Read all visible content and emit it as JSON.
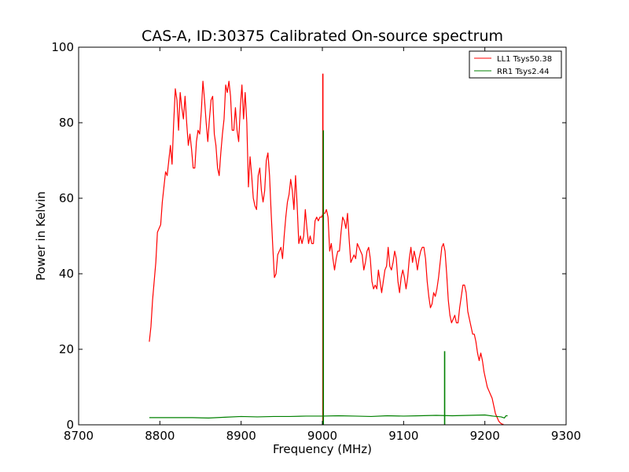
{
  "chart_data": {
    "type": "line",
    "title": "CAS-A, ID:30375 Calibrated On-source spectrum",
    "xlabel": "Frequency (MHz)",
    "ylabel": "Power in Kelvin",
    "xlim": [
      8700,
      9300
    ],
    "ylim": [
      0,
      100
    ],
    "xticks": [
      8700,
      8800,
      8900,
      9000,
      9100,
      9200,
      9300
    ],
    "yticks": [
      0,
      20,
      40,
      60,
      80,
      100
    ],
    "grid": false,
    "legend_position": "top-right",
    "series": [
      {
        "name": "LL1 Tsys50.38",
        "color": "#ff0000",
        "points": [
          [
            8787,
            22
          ],
          [
            8789,
            26
          ],
          [
            8791,
            33
          ],
          [
            8793,
            38
          ],
          [
            8795,
            43
          ],
          [
            8797,
            51
          ],
          [
            8799,
            52
          ],
          [
            8801,
            53
          ],
          [
            8803,
            59
          ],
          [
            8805,
            63
          ],
          [
            8807,
            67
          ],
          [
            8809,
            66
          ],
          [
            8811,
            70
          ],
          [
            8813,
            74
          ],
          [
            8815,
            69
          ],
          [
            8817,
            80
          ],
          [
            8819,
            89
          ],
          [
            8821,
            86
          ],
          [
            8823,
            78
          ],
          [
            8825,
            88
          ],
          [
            8827,
            84
          ],
          [
            8829,
            81
          ],
          [
            8831,
            87
          ],
          [
            8833,
            80
          ],
          [
            8835,
            74
          ],
          [
            8837,
            77
          ],
          [
            8839,
            73
          ],
          [
            8841,
            68
          ],
          [
            8843,
            68
          ],
          [
            8845,
            75
          ],
          [
            8847,
            78
          ],
          [
            8849,
            77
          ],
          [
            8851,
            83
          ],
          [
            8853,
            91
          ],
          [
            8855,
            86
          ],
          [
            8857,
            80
          ],
          [
            8859,
            75
          ],
          [
            8861,
            81
          ],
          [
            8863,
            86
          ],
          [
            8865,
            87
          ],
          [
            8867,
            77
          ],
          [
            8869,
            74
          ],
          [
            8871,
            68
          ],
          [
            8873,
            66
          ],
          [
            8875,
            72
          ],
          [
            8877,
            77
          ],
          [
            8879,
            81
          ],
          [
            8881,
            90
          ],
          [
            8883,
            88
          ],
          [
            8885,
            91
          ],
          [
            8887,
            87
          ],
          [
            8889,
            78
          ],
          [
            8891,
            78
          ],
          [
            8893,
            84
          ],
          [
            8895,
            78
          ],
          [
            8897,
            75
          ],
          [
            8899,
            84
          ],
          [
            8901,
            90
          ],
          [
            8903,
            81
          ],
          [
            8905,
            88
          ],
          [
            8907,
            80
          ],
          [
            8909,
            63
          ],
          [
            8911,
            71
          ],
          [
            8913,
            66
          ],
          [
            8915,
            60
          ],
          [
            8917,
            58
          ],
          [
            8919,
            57
          ],
          [
            8921,
            66
          ],
          [
            8923,
            68
          ],
          [
            8925,
            62
          ],
          [
            8927,
            59
          ],
          [
            8929,
            62
          ],
          [
            8931,
            70
          ],
          [
            8933,
            72
          ],
          [
            8935,
            66
          ],
          [
            8937,
            56
          ],
          [
            8939,
            47
          ],
          [
            8941,
            39
          ],
          [
            8943,
            40
          ],
          [
            8945,
            45
          ],
          [
            8947,
            46
          ],
          [
            8949,
            47
          ],
          [
            8951,
            44
          ],
          [
            8953,
            50
          ],
          [
            8955,
            55
          ],
          [
            8957,
            59
          ],
          [
            8959,
            61
          ],
          [
            8961,
            65
          ],
          [
            8963,
            62
          ],
          [
            8965,
            57
          ],
          [
            8967,
            66
          ],
          [
            8969,
            58
          ],
          [
            8971,
            48
          ],
          [
            8973,
            50
          ],
          [
            8975,
            48
          ],
          [
            8977,
            50
          ],
          [
            8979,
            57
          ],
          [
            8981,
            52
          ],
          [
            8983,
            48
          ],
          [
            8985,
            50
          ],
          [
            8987,
            48
          ],
          [
            8989,
            48
          ],
          [
            8991,
            54
          ],
          [
            8993,
            55
          ],
          [
            8995,
            54
          ],
          [
            8997,
            55
          ],
          [
            8999,
            55
          ],
          [
            9001,
            56
          ],
          [
            9003,
            56
          ],
          [
            9005,
            57
          ],
          [
            9007,
            55
          ],
          [
            9009,
            46
          ],
          [
            9011,
            48
          ],
          [
            9013,
            44
          ],
          [
            9015,
            41
          ],
          [
            9017,
            44
          ],
          [
            9019,
            46
          ],
          [
            9021,
            46
          ],
          [
            9023,
            51
          ],
          [
            9025,
            55
          ],
          [
            9027,
            54
          ],
          [
            9029,
            52
          ],
          [
            9031,
            56
          ],
          [
            9033,
            49
          ],
          [
            9035,
            43
          ],
          [
            9037,
            44
          ],
          [
            9039,
            45
          ],
          [
            9041,
            44
          ],
          [
            9043,
            48
          ],
          [
            9045,
            47
          ],
          [
            9047,
            46
          ],
          [
            9049,
            45
          ],
          [
            9051,
            41
          ],
          [
            9053,
            43
          ],
          [
            9055,
            46
          ],
          [
            9057,
            47
          ],
          [
            9059,
            44
          ],
          [
            9061,
            38
          ],
          [
            9063,
            36
          ],
          [
            9065,
            37
          ],
          [
            9067,
            36
          ],
          [
            9069,
            41
          ],
          [
            9071,
            38
          ],
          [
            9073,
            35
          ],
          [
            9075,
            38
          ],
          [
            9077,
            41
          ],
          [
            9079,
            42
          ],
          [
            9081,
            47
          ],
          [
            9083,
            42
          ],
          [
            9085,
            41
          ],
          [
            9087,
            43
          ],
          [
            9089,
            46
          ],
          [
            9091,
            44
          ],
          [
            9093,
            38
          ],
          [
            9095,
            35
          ],
          [
            9097,
            39
          ],
          [
            9099,
            41
          ],
          [
            9101,
            39
          ],
          [
            9103,
            36
          ],
          [
            9105,
            39
          ],
          [
            9107,
            44
          ],
          [
            9109,
            47
          ],
          [
            9111,
            43
          ],
          [
            9113,
            46
          ],
          [
            9115,
            44
          ],
          [
            9117,
            41
          ],
          [
            9119,
            44
          ],
          [
            9121,
            46
          ],
          [
            9123,
            47
          ],
          [
            9125,
            47
          ],
          [
            9127,
            44
          ],
          [
            9129,
            38
          ],
          [
            9131,
            34
          ],
          [
            9133,
            31
          ],
          [
            9135,
            32
          ],
          [
            9137,
            35
          ],
          [
            9139,
            34
          ],
          [
            9141,
            36
          ],
          [
            9143,
            39
          ],
          [
            9145,
            43
          ],
          [
            9147,
            47
          ],
          [
            9149,
            48
          ],
          [
            9151,
            46
          ],
          [
            9153,
            40
          ],
          [
            9155,
            33
          ],
          [
            9157,
            29
          ],
          [
            9159,
            27
          ],
          [
            9161,
            28
          ],
          [
            9163,
            29
          ],
          [
            9165,
            27
          ],
          [
            9167,
            27
          ],
          [
            9169,
            31
          ],
          [
            9171,
            34
          ],
          [
            9173,
            37
          ],
          [
            9175,
            37
          ],
          [
            9177,
            35
          ],
          [
            9179,
            30
          ],
          [
            9181,
            28
          ],
          [
            9183,
            26
          ],
          [
            9185,
            24
          ],
          [
            9187,
            24
          ],
          [
            9189,
            22
          ],
          [
            9191,
            19
          ],
          [
            9193,
            17
          ],
          [
            9195,
            19
          ],
          [
            9197,
            17
          ],
          [
            9199,
            14
          ],
          [
            9201,
            12
          ],
          [
            9203,
            10
          ],
          [
            9205,
            9
          ],
          [
            9207,
            8
          ],
          [
            9209,
            7
          ],
          [
            9211,
            5
          ],
          [
            9213,
            3
          ],
          [
            9215,
            2
          ],
          [
            9217,
            1
          ],
          [
            9219,
            0.5
          ],
          [
            9221,
            0.2
          ],
          [
            9223,
            0.1
          ]
        ],
        "spikes": [
          {
            "x": 9000.6,
            "y": 93
          }
        ]
      },
      {
        "name": "RR1 Tsys2.44",
        "color": "#008000",
        "points": [
          [
            8787,
            1.9
          ],
          [
            8800,
            1.9
          ],
          [
            8820,
            1.9
          ],
          [
            8840,
            1.9
          ],
          [
            8860,
            1.8
          ],
          [
            8880,
            2.0
          ],
          [
            8900,
            2.2
          ],
          [
            8920,
            2.1
          ],
          [
            8940,
            2.2
          ],
          [
            8960,
            2.2
          ],
          [
            8980,
            2.3
          ],
          [
            9000,
            2.3
          ],
          [
            9020,
            2.4
          ],
          [
            9040,
            2.3
          ],
          [
            9060,
            2.2
          ],
          [
            9080,
            2.4
          ],
          [
            9100,
            2.3
          ],
          [
            9120,
            2.4
          ],
          [
            9140,
            2.5
          ],
          [
            9160,
            2.4
          ],
          [
            9180,
            2.5
          ],
          [
            9200,
            2.6
          ],
          [
            9210,
            2.3
          ],
          [
            9220,
            2.1
          ],
          [
            9224,
            1.8
          ],
          [
            9226,
            2.4
          ],
          [
            9228,
            2.4
          ]
        ],
        "spikes": [
          {
            "x": 9001.2,
            "y": 78
          },
          {
            "x": 9150.5,
            "y": 19.5
          }
        ]
      }
    ]
  }
}
